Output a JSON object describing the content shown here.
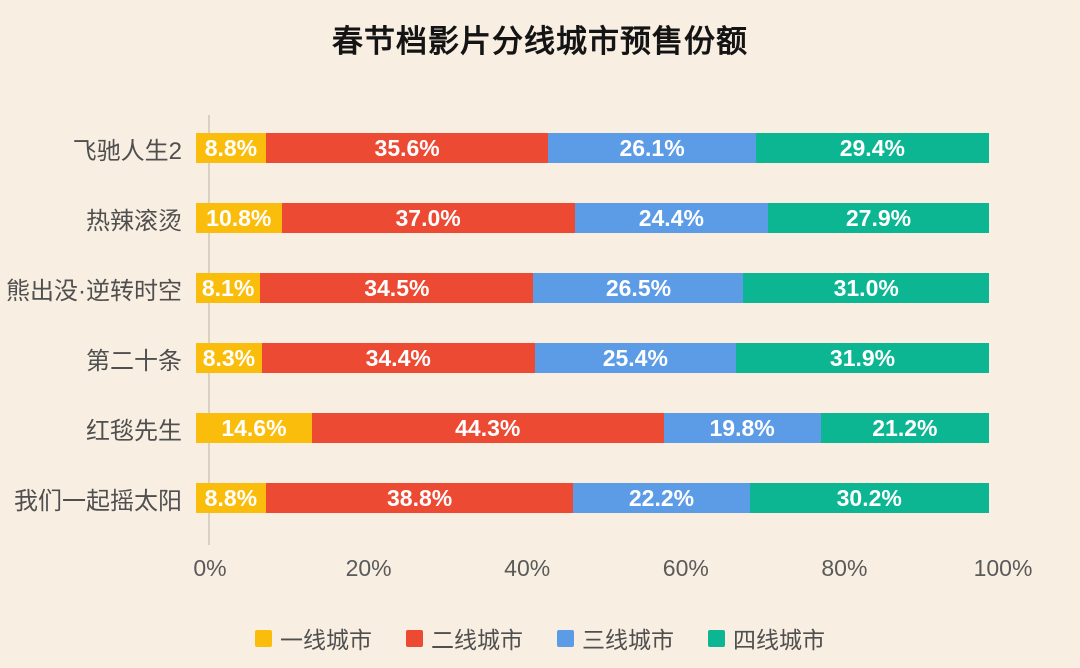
{
  "chart_data": {
    "type": "bar",
    "stacked": true,
    "orientation": "horizontal",
    "title": "春节档影片分线城市预售份额",
    "categories": [
      "飞驰人生2",
      "热辣滚烫",
      "熊出没·逆转时空",
      "第二十条",
      "红毯先生",
      "我们一起摇太阳"
    ],
    "series": [
      {
        "name": "一线城市",
        "color": "#FBBD0B",
        "values": [
          8.8,
          10.8,
          8.1,
          8.3,
          14.6,
          8.8
        ]
      },
      {
        "name": "二线城市",
        "color": "#EC4A33",
        "values": [
          35.6,
          37.0,
          34.5,
          34.4,
          44.3,
          38.8
        ]
      },
      {
        "name": "三线城市",
        "color": "#5C9CE6",
        "values": [
          26.1,
          24.4,
          26.5,
          25.4,
          19.8,
          22.2
        ]
      },
      {
        "name": "四线城市",
        "color": "#0CB692",
        "values": [
          29.4,
          27.9,
          31.0,
          31.9,
          21.2,
          30.2
        ]
      }
    ],
    "value_suffix": "%",
    "value_decimals": 1,
    "x_ticks": [
      "0%",
      "20%",
      "40%",
      "60%",
      "80%",
      "100%"
    ],
    "xlim": [
      0,
      100
    ],
    "grid": false,
    "legend_position": "bottom"
  },
  "page": {
    "background": "#F8EFE2",
    "axis_line_color": "#DAD1C5"
  }
}
